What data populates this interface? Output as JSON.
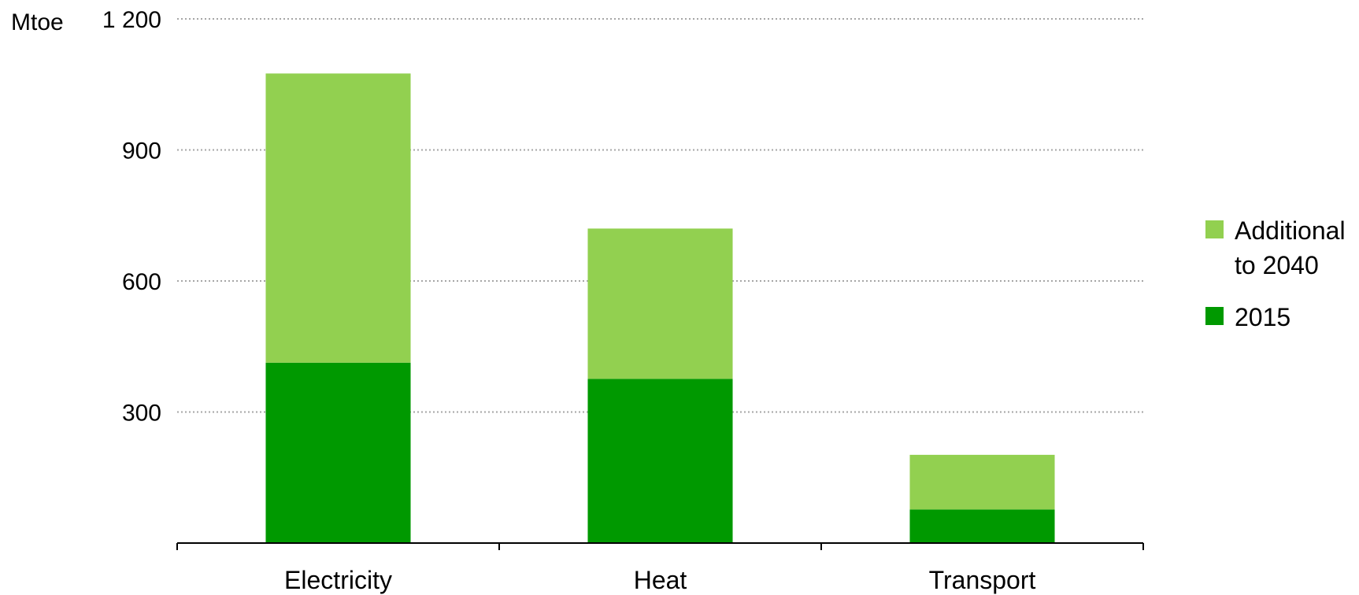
{
  "chart_data": {
    "type": "bar",
    "stacked": true,
    "categories": [
      "Electricity",
      "Heat",
      "Transport"
    ],
    "series": [
      {
        "name": "2015",
        "values": [
          413,
          376,
          77
        ],
        "color": "#009900"
      },
      {
        "name": "Additional to 2040",
        "values": [
          662,
          344,
          125
        ],
        "color": "#92d050"
      }
    ],
    "y_unit": "Mtoe",
    "y_ticks": [
      "300",
      "600",
      "900",
      "1 200"
    ],
    "y_tick_values": [
      300,
      600,
      900,
      1200
    ],
    "ylim": [
      0,
      1200
    ],
    "grid": true,
    "grid_style": "dotted",
    "legend": {
      "position": "right",
      "entries": [
        {
          "label_lines": [
            "Additional",
            "to 2040"
          ],
          "color": "#92d050"
        },
        {
          "label_lines": [
            "2015"
          ],
          "color": "#009900"
        }
      ]
    }
  }
}
